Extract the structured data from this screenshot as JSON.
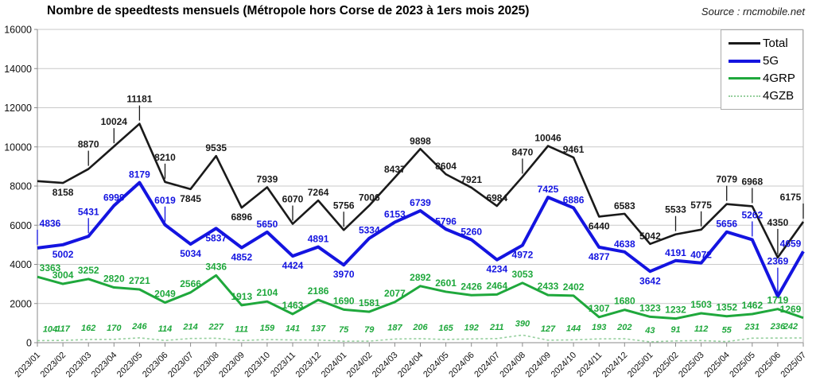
{
  "header": {
    "title": "Nombre de speedtests mensuels (Métropole hors Corse de 2023 à 1ers mois 2025)",
    "source": "Source : rncmobile.net"
  },
  "legend": {
    "position": "top-right",
    "items": [
      {
        "label": "Total",
        "color": "#1a1a1a",
        "style": "solid"
      },
      {
        "label": "5G",
        "color": "#1414e0",
        "style": "solid"
      },
      {
        "label": "4GRP",
        "color": "#1fa83c",
        "style": "solid"
      },
      {
        "label": "4GZB",
        "color": "#96cf9e",
        "style": "dotted"
      }
    ]
  },
  "axes": {
    "y_ticks": [
      0,
      2000,
      4000,
      6000,
      8000,
      10000,
      12000,
      14000,
      16000
    ]
  },
  "chart_data": {
    "type": "line",
    "title": "Nombre de speedtests mensuels (Métropole hors Corse de 2023 à 1ers mois 2025)",
    "source": "Source : rncmobile.net",
    "grid": true,
    "legend_position": "top-right",
    "ylim": [
      0,
      16000
    ],
    "categories": [
      "2023/01",
      "2023/02",
      "2023/03",
      "2023/04",
      "2023/05",
      "2023/06",
      "2023/07",
      "2023/08",
      "2023/09",
      "2023/10",
      "2023/11",
      "2023/12",
      "2024/01",
      "2024/02",
      "2024/03",
      "2024/04",
      "2024/05",
      "2024/06",
      "2024/07",
      "2024/08",
      "2024/09",
      "2024/10",
      "2024/11",
      "2024/12",
      "2025/01",
      "2025/02",
      "2025/03",
      "2025/04",
      "2025/05",
      "2025/06",
      "2025/07"
    ],
    "series": [
      {
        "name": "Total",
        "color": "#1a1a1a",
        "label_hidden_indices": [
          0
        ],
        "values": [
          8250,
          8158,
          8870,
          10024,
          11181,
          8210,
          7845,
          9535,
          6896,
          7939,
          6070,
          7264,
          5756,
          7006,
          8437,
          9898,
          8604,
          7921,
          6984,
          8470,
          10046,
          9461,
          6440,
          6583,
          5042,
          5533,
          5775,
          7079,
          6968,
          4350,
          6175
        ]
      },
      {
        "name": "5G",
        "color": "#1414e0",
        "values": [
          4836,
          5002,
          5431,
          6999,
          8179,
          6019,
          5034,
          5837,
          4852,
          5650,
          4424,
          4891,
          3970,
          5334,
          6153,
          6739,
          5796,
          5260,
          4234,
          4972,
          7425,
          6886,
          4877,
          4638,
          3642,
          4191,
          4072,
          5656,
          5262,
          2369,
          4659
        ]
      },
      {
        "name": "4GRP",
        "color": "#1fa83c",
        "values": [
          3363,
          3004,
          3252,
          2820,
          2721,
          2049,
          2566,
          3436,
          1913,
          2104,
          1463,
          2186,
          1690,
          1581,
          2077,
          2892,
          2601,
          2426,
          2464,
          3053,
          2433,
          2402,
          1307,
          1680,
          1323,
          1232,
          1503,
          1352,
          1462,
          1719,
          1269
        ]
      },
      {
        "name": "4GZB",
        "color": "#1fa83c",
        "line_color": "#96cf9e",
        "dashed": true,
        "values": [
          104,
          117,
          162,
          170,
          246,
          114,
          214,
          227,
          111,
          159,
          141,
          137,
          75,
          79,
          187,
          206,
          165,
          192,
          211,
          390,
          127,
          144,
          193,
          202,
          43,
          91,
          112,
          55,
          231,
          236,
          242
        ]
      }
    ]
  }
}
